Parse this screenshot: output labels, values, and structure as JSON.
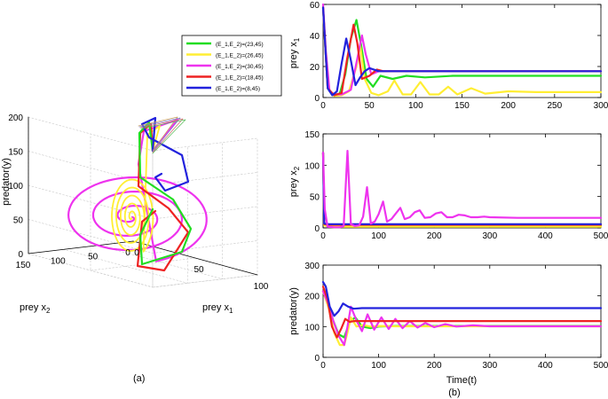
{
  "figure": {
    "caption_a": "(a)",
    "caption_b": "(b)"
  },
  "colors": {
    "green": "#22dd22",
    "yellow": "#ffee33",
    "magenta": "#ee33ee",
    "red": "#ee2222",
    "blue": "#2222dd"
  },
  "chart_data": [
    {
      "type": "line",
      "projection": "3d",
      "xlabel": "prey x_1",
      "ylabel": "prey x_2",
      "zlabel": "predator(y)",
      "x_ticks": [
        0,
        50,
        100
      ],
      "y_ticks": [
        0,
        50,
        100,
        150
      ],
      "z_ticks": [
        0,
        50,
        100,
        150,
        200
      ],
      "xlim": [
        0,
        100
      ],
      "ylim": [
        0,
        150
      ],
      "zlim": [
        0,
        200
      ],
      "grid": true,
      "legend_position": "top-right",
      "series": [
        {
          "name": "(E_1,E_2)=(23,45)",
          "color": "green"
        },
        {
          "name": "(E_1,E_2)=(26,45)",
          "color": "yellow"
        },
        {
          "name": "(E_1,E_2)=(30,45)",
          "color": "magenta"
        },
        {
          "name": "(E_1,E_2)=(18,45)",
          "color": "red"
        },
        {
          "name": "(E_1,E_2)=(8,45)",
          "color": "blue"
        }
      ]
    },
    {
      "type": "line",
      "xlabel": "",
      "ylabel": "prey x_1",
      "xlim": [
        0,
        300
      ],
      "ylim": [
        0,
        60
      ],
      "x_ticks": [
        0,
        50,
        100,
        150,
        200,
        250,
        300
      ],
      "y_ticks": [
        0,
        20,
        40,
        60
      ],
      "series": [
        {
          "color": "green",
          "x": [
            0,
            5,
            10,
            18,
            24,
            30,
            36,
            41,
            47,
            54,
            62,
            75,
            90,
            110,
            140,
            200,
            300
          ],
          "y": [
            58,
            6,
            1.5,
            2.5,
            15,
            38,
            50,
            34,
            12,
            7,
            14,
            12,
            14,
            13,
            14,
            14,
            14
          ]
        },
        {
          "color": "yellow",
          "x": [
            0,
            5,
            12,
            20,
            28,
            36,
            40,
            45,
            52,
            60,
            70,
            77,
            86,
            95,
            105,
            115,
            125,
            135,
            145,
            160,
            175,
            200,
            230,
            260,
            300
          ],
          "y": [
            58,
            6,
            1,
            1.5,
            4,
            20,
            34,
            12,
            3,
            1.5,
            4,
            11,
            2,
            2,
            10,
            2,
            2,
            7,
            2,
            6,
            2.5,
            4,
            3.5,
            3.5,
            3.5
          ]
        },
        {
          "color": "magenta",
          "x": [
            0,
            3,
            7,
            12,
            20,
            30,
            38,
            42,
            46,
            52,
            60,
            70,
            80,
            100,
            150,
            300
          ],
          "y": [
            60,
            30,
            4,
            2,
            2,
            5,
            28,
            40,
            28,
            15,
            17,
            17,
            17,
            17,
            17,
            17
          ]
        },
        {
          "color": "red",
          "x": [
            0,
            5,
            12,
            20,
            26,
            33,
            37,
            42,
            50,
            58,
            65,
            80,
            100,
            150,
            300
          ],
          "y": [
            58,
            6,
            1.5,
            3,
            25,
            47,
            35,
            12,
            14,
            18,
            17,
            17,
            17,
            17,
            17
          ]
        },
        {
          "color": "blue",
          "x": [
            0,
            5,
            10,
            15,
            20,
            25,
            30,
            35,
            40,
            45,
            50,
            60,
            70,
            100,
            300
          ],
          "y": [
            58,
            6,
            1.5,
            4,
            22,
            38,
            24,
            8,
            13,
            17,
            19,
            17,
            17,
            17,
            17
          ]
        }
      ]
    },
    {
      "type": "line",
      "xlabel": "",
      "ylabel": "prey x_2",
      "xlim": [
        0,
        500
      ],
      "ylim": [
        0,
        150
      ],
      "x_ticks": [
        0,
        100,
        200,
        300,
        400,
        500
      ],
      "y_ticks": [
        0,
        50,
        100,
        150
      ],
      "series": [
        {
          "color": "green",
          "x": [
            0,
            2,
            10,
            500
          ],
          "y": [
            120,
            5,
            3,
            3
          ]
        },
        {
          "color": "yellow",
          "x": [
            0,
            2,
            10,
            500
          ],
          "y": [
            120,
            4,
            2,
            2
          ]
        },
        {
          "color": "red",
          "x": [
            0,
            2,
            10,
            500
          ],
          "y": [
            120,
            6,
            5,
            5
          ]
        },
        {
          "color": "blue",
          "x": [
            0,
            2,
            10,
            500
          ],
          "y": [
            120,
            7,
            6,
            6
          ]
        },
        {
          "color": "magenta",
          "x": [
            0,
            3,
            8,
            20,
            30,
            37,
            44,
            50,
            57,
            65,
            72,
            79,
            86,
            93,
            100,
            108,
            115,
            123,
            131,
            139,
            147,
            156,
            165,
            174,
            183,
            193,
            203,
            213,
            223,
            233,
            244,
            255,
            266,
            278,
            290,
            300,
            350,
            400,
            450,
            500
          ],
          "y": [
            120,
            30,
            2,
            1,
            1,
            3,
            123,
            6,
            3,
            4,
            18,
            65,
            7,
            10,
            22,
            42,
            10,
            14,
            23,
            32,
            14,
            17,
            25,
            28,
            16,
            17,
            23,
            25,
            17,
            17,
            21,
            20,
            17,
            17,
            18,
            17,
            16,
            16,
            16,
            16
          ]
        }
      ]
    },
    {
      "type": "line",
      "xlabel": "Time(t)",
      "ylabel": "predator(y)",
      "xlim": [
        0,
        500
      ],
      "ylim": [
        0,
        300
      ],
      "x_ticks": [
        0,
        100,
        200,
        300,
        400,
        500
      ],
      "y_ticks": [
        0,
        100,
        200,
        300
      ],
      "series": [
        {
          "color": "green",
          "x": [
            0,
            8,
            18,
            28,
            38,
            48,
            58,
            70,
            85,
            100,
            130,
            200,
            500
          ],
          "y": [
            215,
            185,
            120,
            75,
            65,
            115,
            130,
            100,
            95,
            100,
            102,
            102,
            102
          ]
        },
        {
          "color": "yellow",
          "x": [
            0,
            10,
            20,
            30,
            38,
            44,
            50,
            60,
            72,
            85,
            100,
            130,
            200,
            500
          ],
          "y": [
            215,
            160,
            80,
            40,
            40,
            80,
            130,
            100,
            105,
            100,
            102,
            101,
            101,
            101
          ]
        },
        {
          "color": "magenta",
          "x": [
            0,
            8,
            18,
            28,
            38,
            44,
            50,
            60,
            70,
            80,
            92,
            105,
            118,
            130,
            143,
            156,
            170,
            184,
            200,
            220,
            240,
            270,
            300,
            350,
            400,
            500
          ],
          "y": [
            215,
            180,
            120,
            70,
            40,
            100,
            165,
            120,
            85,
            140,
            90,
            130,
            92,
            125,
            95,
            118,
            97,
            112,
            98,
            108,
            100,
            104,
            101,
            101,
            101,
            101
          ]
        },
        {
          "color": "red",
          "x": [
            0,
            8,
            16,
            25,
            33,
            40,
            48,
            56,
            65,
            80,
            100,
            200,
            500
          ],
          "y": [
            230,
            190,
            100,
            65,
            95,
            125,
            115,
            118,
            118,
            118,
            118,
            118,
            118
          ]
        },
        {
          "color": "blue",
          "x": [
            0,
            5,
            12,
            20,
            28,
            36,
            45,
            55,
            70,
            100,
            200,
            500
          ],
          "y": [
            245,
            230,
            165,
            135,
            150,
            175,
            165,
            158,
            160,
            160,
            160,
            160
          ]
        }
      ]
    }
  ]
}
